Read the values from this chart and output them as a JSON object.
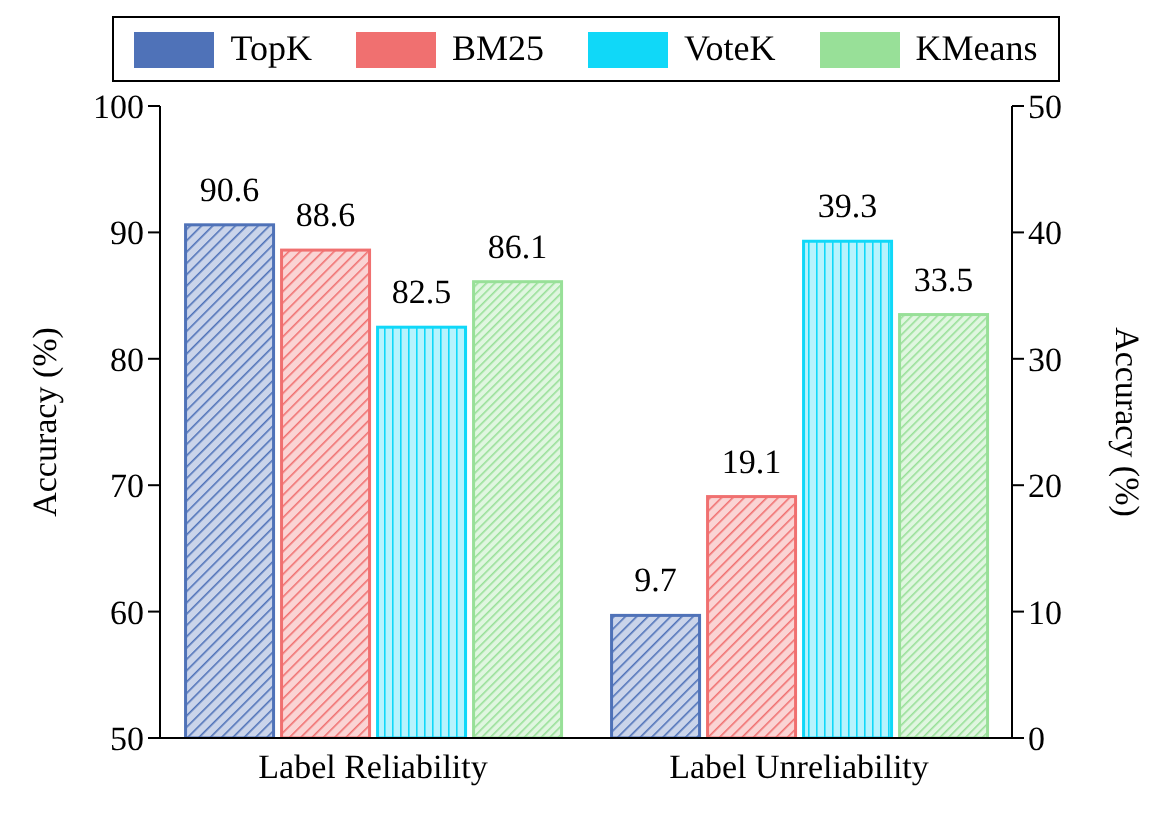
{
  "chart_data": {
    "type": "bar",
    "categories": [
      "Label Reliability",
      "Label Unreliability"
    ],
    "ylabel": "Accuracy (%)",
    "y2label": "Accuracy (%)",
    "ylim": [
      50,
      100
    ],
    "yticks": [
      50,
      60,
      70,
      80,
      90,
      100
    ],
    "y2lim": [
      0,
      50
    ],
    "y2ticks": [
      0,
      10,
      20,
      30,
      40,
      50
    ],
    "series": [
      {
        "name": "TopK",
        "color": "#4f72b8",
        "values": [
          90.6,
          null
        ]
      },
      {
        "name": "BM25",
        "color": "#f07070",
        "values": [
          88.6,
          null
        ]
      },
      {
        "name": "VoteK",
        "color": "#10d8f8",
        "values": [
          82.5,
          null
        ]
      },
      {
        "name": "KMeans",
        "color": "#98e098",
        "values": [
          86.1,
          null
        ]
      },
      {
        "color": "#4f72b8",
        "values": [
          null,
          9.7
        ],
        "axis": "y2"
      },
      {
        "color": "#f07070",
        "values": [
          null,
          19.1
        ],
        "axis": "y2"
      },
      {
        "color": "#10d8f8",
        "values": [
          null,
          39.3
        ],
        "axis": "y2"
      },
      {
        "color": "#98e098",
        "values": [
          null,
          33.5
        ],
        "axis": "y2"
      }
    ],
    "data_labels": true,
    "legend": "top",
    "grid": false
  }
}
